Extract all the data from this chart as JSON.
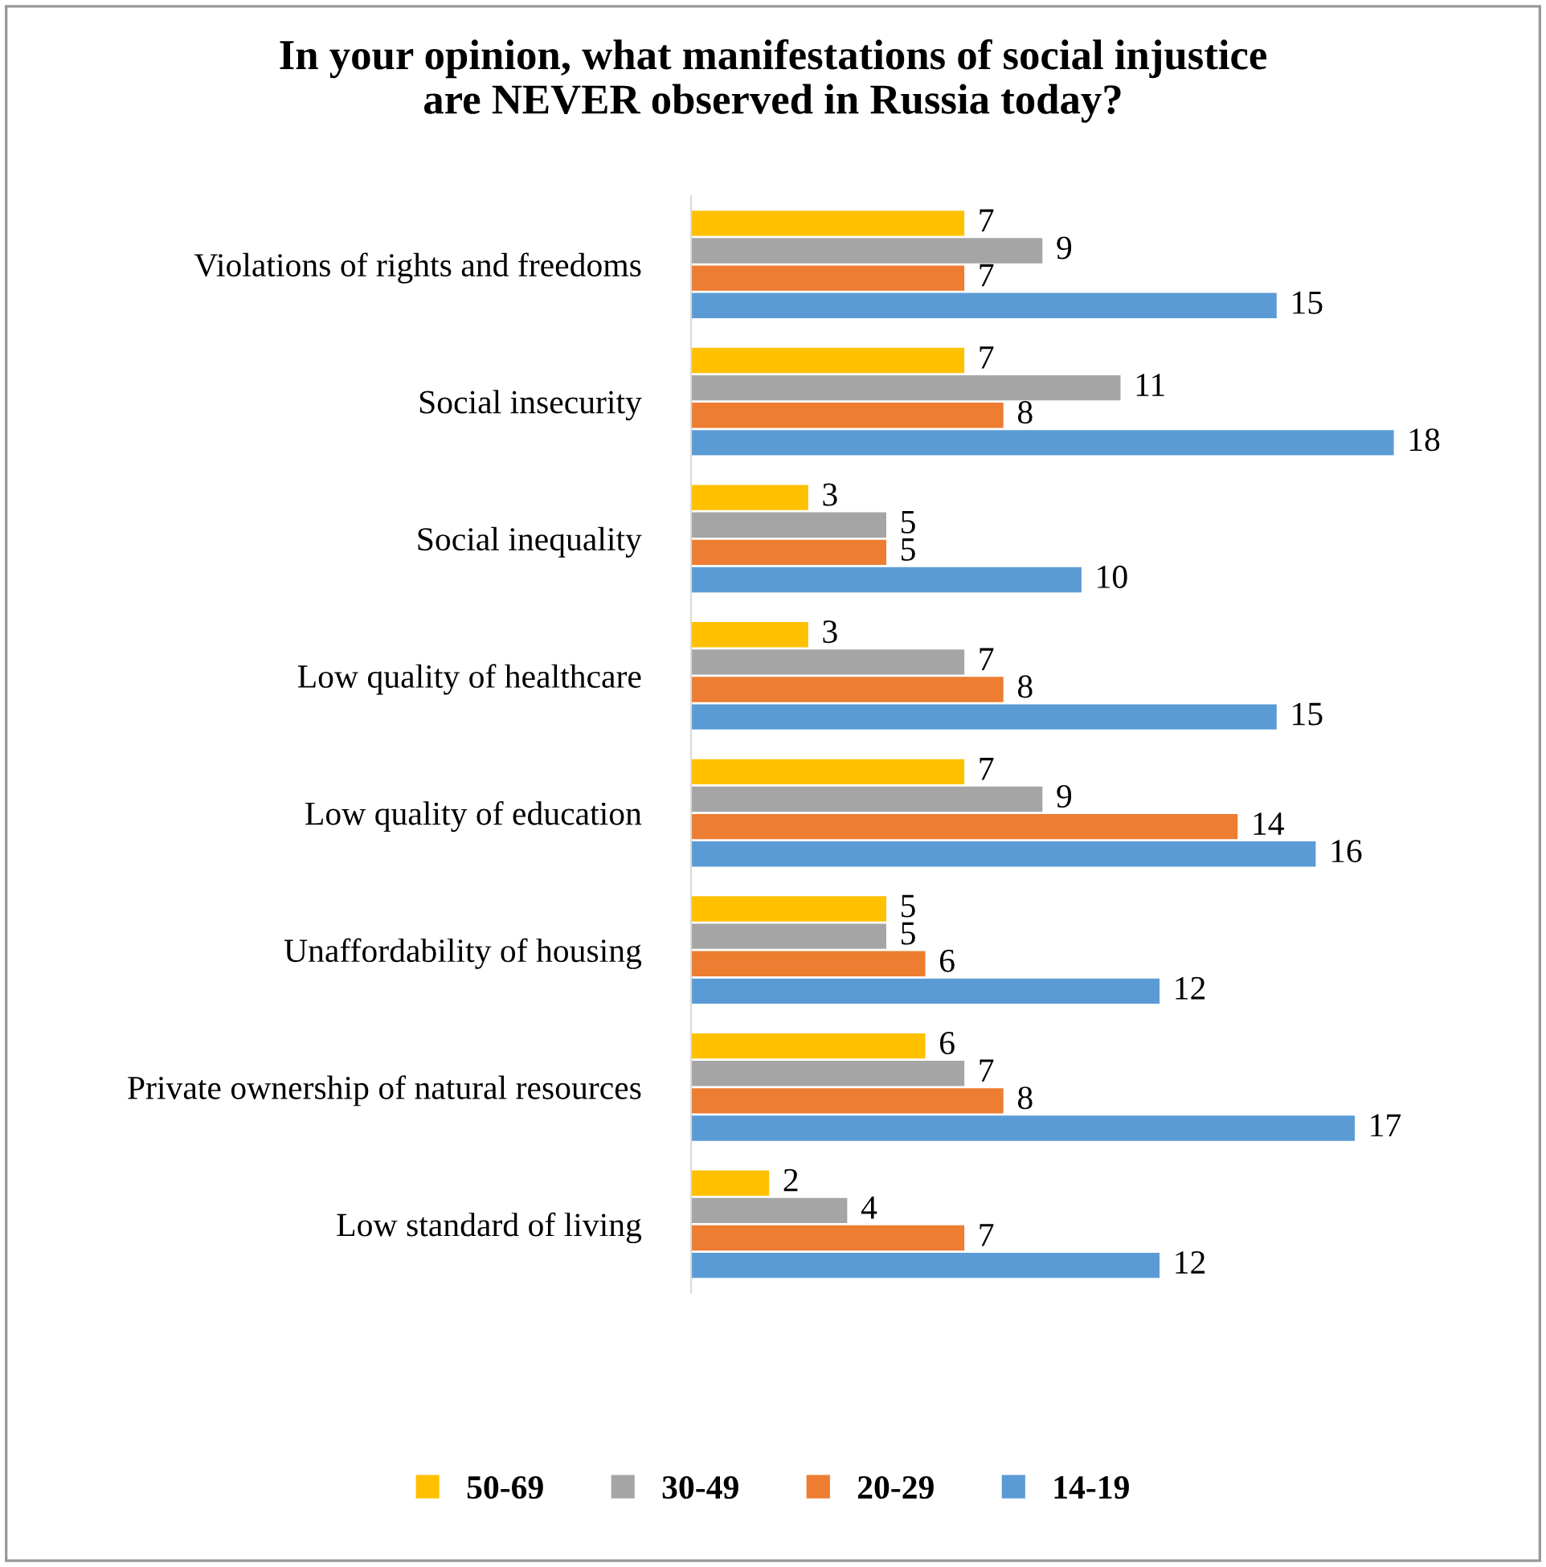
{
  "chart_data": {
    "type": "bar",
    "orientation": "horizontal",
    "title": "In your opinion, what manifestations of social injustice\nare NEVER observed in Russia today?",
    "categories": [
      "Violations of rights and freedoms",
      "Social insecurity",
      "Social inequality",
      "Low quality of healthcare",
      "Low quality of education",
      "Unaffordability of housing",
      "Private ownership of natural resources",
      "Low standard of living"
    ],
    "series": [
      {
        "name": "50-69",
        "color": "#ffc000",
        "values": [
          7,
          7,
          3,
          3,
          7,
          5,
          6,
          2
        ]
      },
      {
        "name": "30-49",
        "color": "#a5a5a5",
        "values": [
          9,
          11,
          5,
          7,
          9,
          5,
          7,
          4
        ]
      },
      {
        "name": "20-29",
        "color": "#ed7d31",
        "values": [
          7,
          8,
          5,
          8,
          14,
          6,
          8,
          7
        ]
      },
      {
        "name": "14-19",
        "color": "#5b9bd5",
        "values": [
          15,
          18,
          10,
          15,
          16,
          12,
          17,
          12
        ]
      }
    ],
    "data_labels": true,
    "tick_labels": "y",
    "legend": "bottom",
    "grid": false
  }
}
